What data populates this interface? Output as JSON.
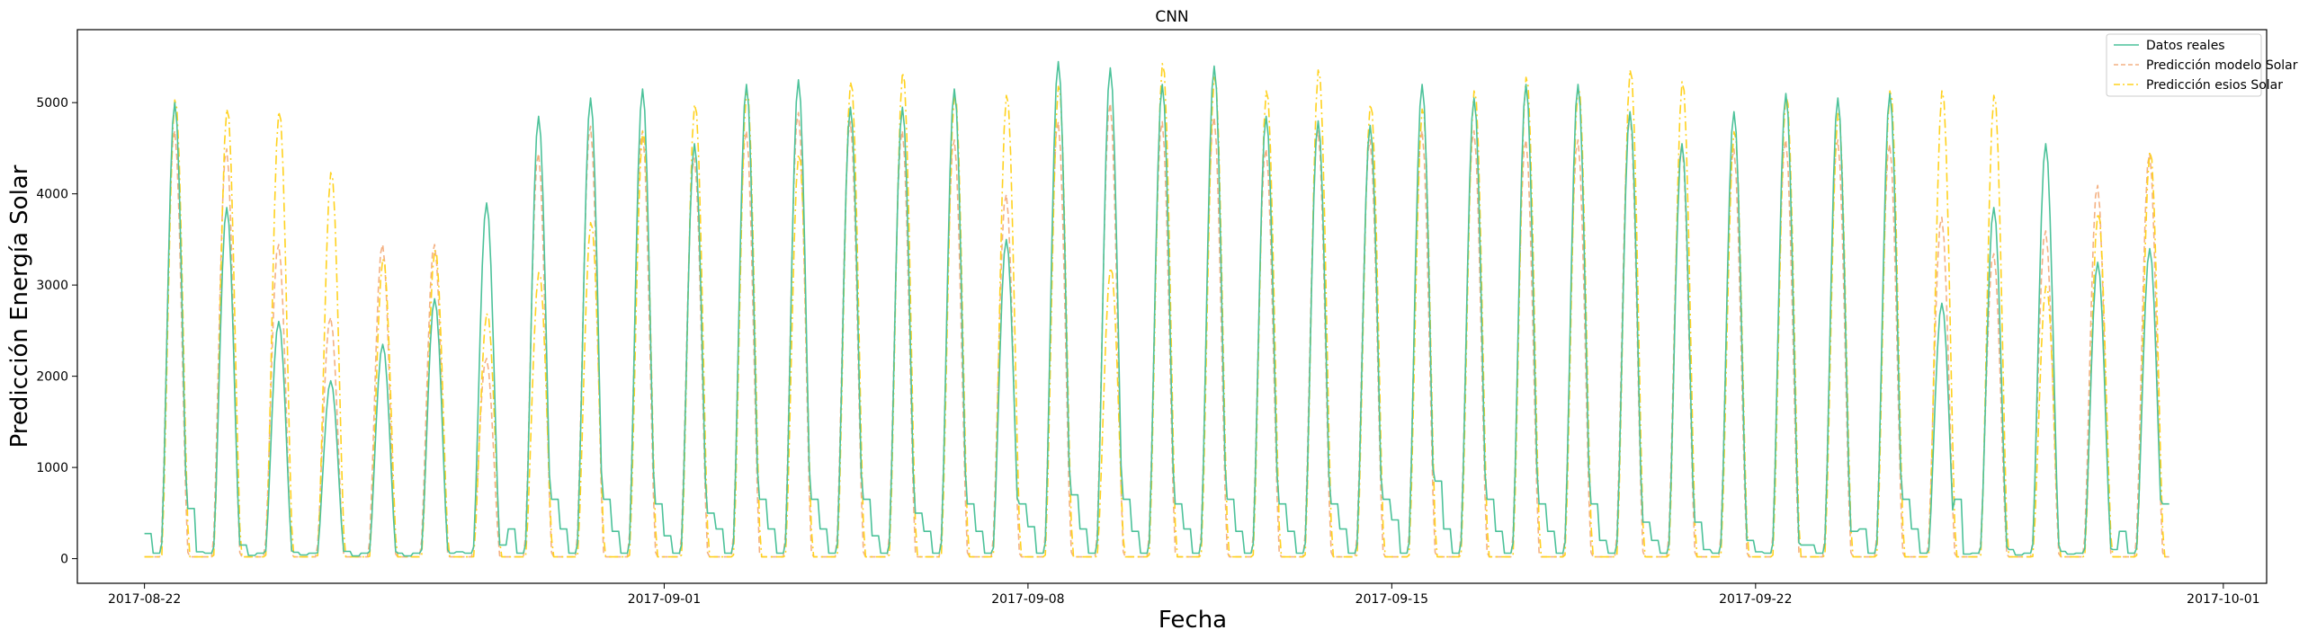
{
  "chart_data": {
    "type": "line",
    "title": "CNN",
    "xlabel": "Fecha",
    "ylabel": "Predicción Energía Solar",
    "x_tick_labels": [
      "2017-08-22",
      "2017-09-01",
      "2017-09-08",
      "2017-09-15",
      "2017-09-22",
      "2017-10-01"
    ],
    "x_tick_dates": [
      "2017-08-22",
      "2017-09-01",
      "2017-09-08",
      "2017-09-15",
      "2017-09-22",
      "2017-10-01"
    ],
    "xlim": [
      "2017-08-20T17:00",
      "2017-10-01T20:00"
    ],
    "y_ticks": [
      0,
      1000,
      2000,
      3000,
      4000,
      5000
    ],
    "ylim": [
      -270,
      5800
    ],
    "grid": false,
    "legend_position": "top-right",
    "day_start": "2017-08-22",
    "series": [
      {
        "name": "Datos reales",
        "color": "#4cc29a",
        "style": "solid",
        "peaks": [
          5000,
          3850,
          2600,
          1950,
          2350,
          2850,
          3900,
          4850,
          5050,
          5150,
          4550,
          5200,
          5250,
          4950,
          4950,
          5150,
          3500,
          5450,
          5380,
          5200,
          5400,
          4850,
          4800,
          4750,
          5200,
          5050,
          5200,
          5200,
          4900,
          4550,
          4900,
          5100,
          5050,
          5100,
          2800,
          3850,
          4550,
          3250,
          3400
        ],
        "night": [
          550,
          150,
          70,
          80,
          60,
          60,
          150,
          650,
          650,
          600,
          500,
          650,
          650,
          650,
          500,
          600,
          600,
          700,
          650,
          600,
          650,
          600,
          600,
          650,
          850,
          650,
          600,
          600,
          400,
          400,
          200,
          150,
          300,
          650,
          650,
          100,
          80,
          100,
          600
        ]
      },
      {
        "name": "Predicción modelo Solar",
        "color": "#f4b183",
        "style": "dashed",
        "peaks": [
          4700,
          4500,
          3450,
          2650,
          3450,
          3450,
          2200,
          4450,
          4750,
          4700,
          4400,
          4700,
          4900,
          4800,
          4700,
          4600,
          4000,
          4800,
          5000,
          4800,
          4850,
          4500,
          4700,
          4600,
          4700,
          4700,
          4600,
          4600,
          4900,
          4550,
          4500,
          4600,
          4600,
          4550,
          3750,
          3350,
          3600,
          4100,
          4450
        ]
      },
      {
        "name": "Predicción esios Solar",
        "color": "#ffd21f",
        "style": "dashdot",
        "peaks": [
          5050,
          4950,
          4920,
          4250,
          3300,
          3400,
          2700,
          3150,
          3700,
          4700,
          5000,
          5150,
          4450,
          5250,
          5350,
          5100,
          5100,
          5200,
          3200,
          5450,
          5300,
          5150,
          5380,
          5000,
          4950,
          5150,
          5300,
          5200,
          5380,
          5250,
          4700,
          5100,
          4900,
          5150,
          5150,
          5100,
          3000,
          3800,
          4480
        ]
      }
    ]
  }
}
